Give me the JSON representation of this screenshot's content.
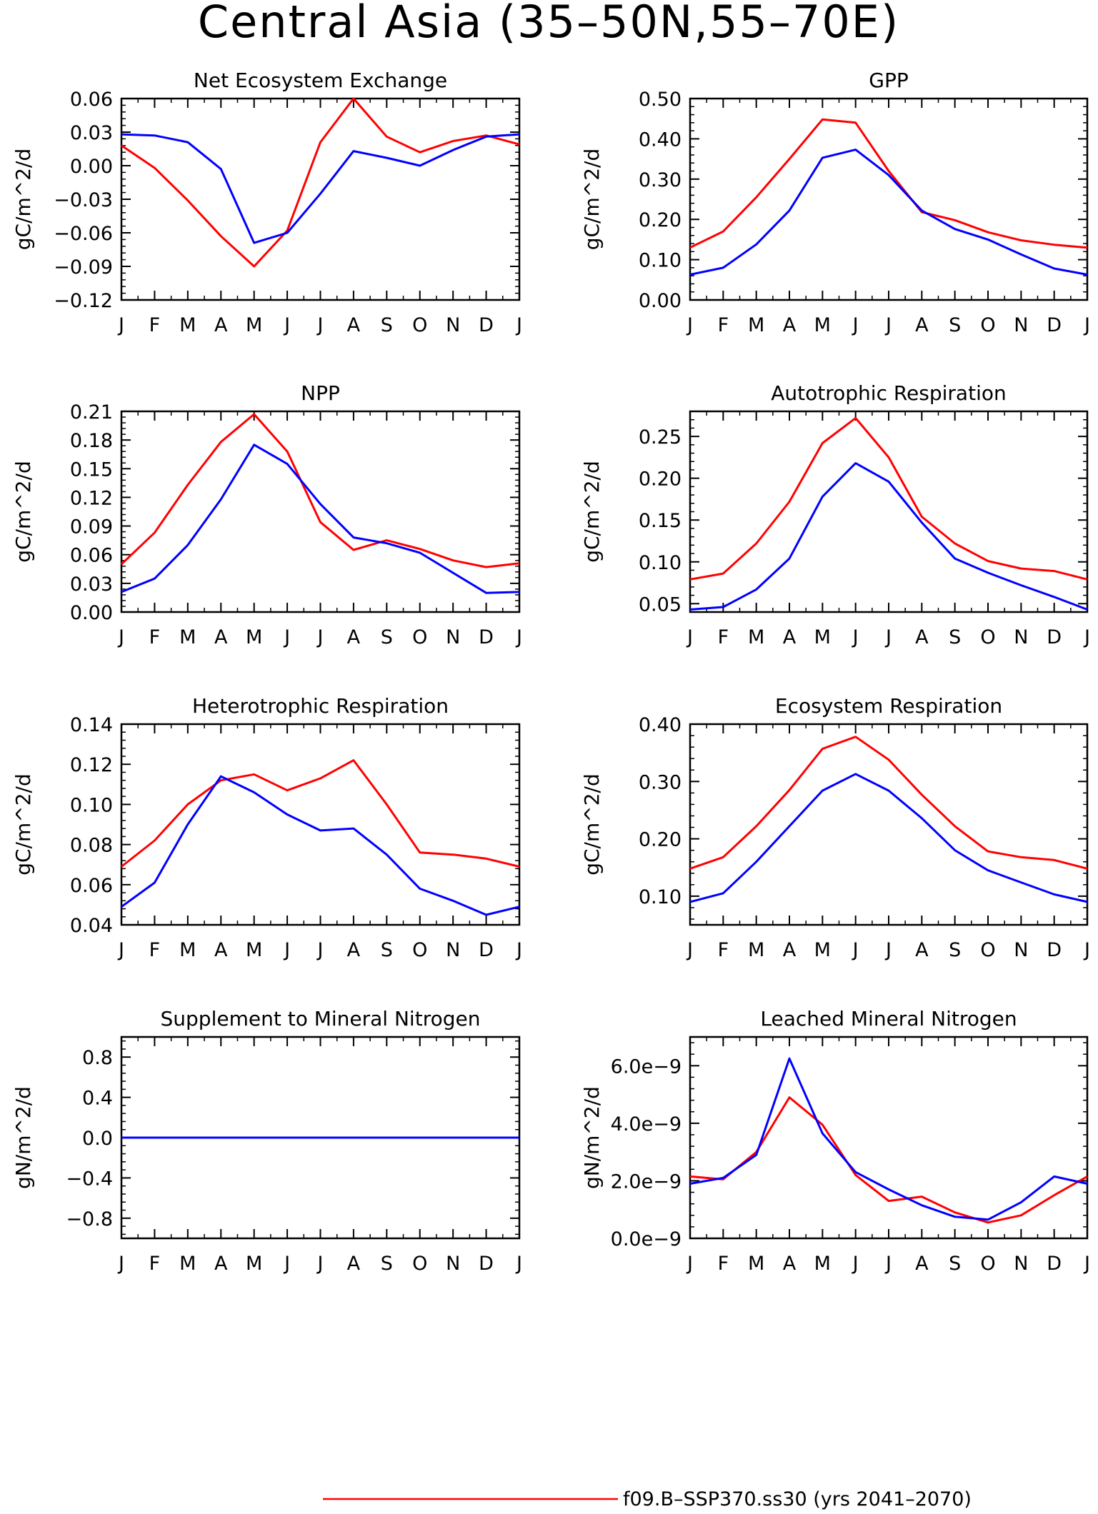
{
  "title": "Central Asia (35–50N,55–70E)",
  "months": [
    "J",
    "F",
    "M",
    "A",
    "M",
    "J",
    "J",
    "A",
    "S",
    "O",
    "N",
    "D",
    "J"
  ],
  "colors": {
    "model_red": "#ff0000",
    "model_blue": "#0000ff",
    "axes": "#000000"
  },
  "legend": {
    "series1_label": "f09.B–SSP370.ss30 (yrs 2041–2070)"
  },
  "chart_data": [
    {
      "type": "line",
      "title": "Net Ecosystem Exchange",
      "ylabel": "gC/m^2/d",
      "ylim": [
        -0.12,
        0.06
      ],
      "yticks": [
        -0.12,
        -0.09,
        -0.06,
        -0.03,
        0.0,
        0.03,
        0.06
      ],
      "ytick_labels": [
        "−0.12",
        "−0.09",
        "−0.06",
        "−0.03",
        "0.00",
        "0.03",
        "0.06"
      ],
      "series": [
        {
          "color": "#ff0000",
          "values": [
            0.018,
            -0.002,
            -0.031,
            -0.063,
            -0.09,
            -0.058,
            0.021,
            0.06,
            0.026,
            0.012,
            0.022,
            0.027,
            0.019
          ]
        },
        {
          "color": "#0000ff",
          "values": [
            0.028,
            0.027,
            0.021,
            -0.003,
            -0.069,
            -0.06,
            -0.025,
            0.013,
            0.007,
            0.0,
            0.014,
            0.026,
            0.028
          ]
        }
      ]
    },
    {
      "type": "line",
      "title": "GPP",
      "ylabel": "gC/m^2/d",
      "ylim": [
        0.0,
        0.5
      ],
      "yticks": [
        0.0,
        0.1,
        0.2,
        0.3,
        0.4,
        0.5
      ],
      "ytick_labels": [
        "0.00",
        "0.10",
        "0.20",
        "0.30",
        "0.40",
        "0.50"
      ],
      "series": [
        {
          "color": "#ff0000",
          "values": [
            0.13,
            0.17,
            0.255,
            0.35,
            0.448,
            0.44,
            0.32,
            0.218,
            0.198,
            0.168,
            0.148,
            0.137,
            0.13
          ]
        },
        {
          "color": "#0000ff",
          "values": [
            0.063,
            0.08,
            0.138,
            0.222,
            0.353,
            0.373,
            0.31,
            0.222,
            0.176,
            0.15,
            0.113,
            0.078,
            0.063
          ]
        }
      ]
    },
    {
      "type": "line",
      "title": "NPP",
      "ylabel": "gC/m^2/d",
      "ylim": [
        0.0,
        0.21
      ],
      "yticks": [
        0.0,
        0.03,
        0.06,
        0.09,
        0.12,
        0.15,
        0.18,
        0.21
      ],
      "ytick_labels": [
        "0.00",
        "0.03",
        "0.06",
        "0.09",
        "0.12",
        "0.15",
        "0.18",
        "0.21"
      ],
      "series": [
        {
          "color": "#ff0000",
          "values": [
            0.05,
            0.083,
            0.133,
            0.178,
            0.207,
            0.168,
            0.094,
            0.065,
            0.075,
            0.066,
            0.054,
            0.047,
            0.051
          ]
        },
        {
          "color": "#0000ff",
          "values": [
            0.021,
            0.035,
            0.07,
            0.118,
            0.175,
            0.155,
            0.113,
            0.078,
            0.072,
            0.062,
            0.041,
            0.02,
            0.021
          ]
        }
      ]
    },
    {
      "type": "line",
      "title": "Autotrophic Respiration",
      "ylabel": "gC/m^2/d",
      "ylim": [
        0.04,
        0.28
      ],
      "yticks": [
        0.05,
        0.1,
        0.15,
        0.2,
        0.25
      ],
      "ytick_labels": [
        "0.05",
        "0.10",
        "0.15",
        "0.20",
        "0.25"
      ],
      "series": [
        {
          "color": "#ff0000",
          "values": [
            0.079,
            0.086,
            0.122,
            0.172,
            0.242,
            0.272,
            0.225,
            0.154,
            0.122,
            0.101,
            0.092,
            0.089,
            0.079
          ]
        },
        {
          "color": "#0000ff",
          "values": [
            0.043,
            0.046,
            0.067,
            0.104,
            0.178,
            0.218,
            0.196,
            0.147,
            0.104,
            0.087,
            0.072,
            0.058,
            0.043
          ]
        }
      ]
    },
    {
      "type": "line",
      "title": "Heterotrophic Respiration",
      "ylabel": "gC/m^2/d",
      "ylim": [
        0.04,
        0.14
      ],
      "yticks": [
        0.04,
        0.06,
        0.08,
        0.1,
        0.12,
        0.14
      ],
      "ytick_labels": [
        "0.04",
        "0.06",
        "0.08",
        "0.10",
        "0.12",
        "0.14"
      ],
      "series": [
        {
          "color": "#ff0000",
          "values": [
            0.069,
            0.082,
            0.1,
            0.112,
            0.115,
            0.107,
            0.113,
            0.122,
            0.1,
            0.076,
            0.075,
            0.073,
            0.069
          ]
        },
        {
          "color": "#0000ff",
          "values": [
            0.049,
            0.061,
            0.09,
            0.114,
            0.106,
            0.095,
            0.087,
            0.088,
            0.075,
            0.058,
            0.052,
            0.045,
            0.049
          ]
        }
      ]
    },
    {
      "type": "line",
      "title": "Ecosystem Respiration",
      "ylabel": "gC/m^2/d",
      "ylim": [
        0.05,
        0.4
      ],
      "yticks": [
        0.1,
        0.2,
        0.3,
        0.4
      ],
      "ytick_labels": [
        "0.10",
        "0.20",
        "0.30",
        "0.40"
      ],
      "series": [
        {
          "color": "#ff0000",
          "values": [
            0.148,
            0.168,
            0.222,
            0.285,
            0.357,
            0.378,
            0.338,
            0.277,
            0.222,
            0.178,
            0.168,
            0.163,
            0.148
          ]
        },
        {
          "color": "#0000ff",
          "values": [
            0.09,
            0.105,
            0.16,
            0.222,
            0.284,
            0.313,
            0.284,
            0.236,
            0.18,
            0.145,
            0.124,
            0.103,
            0.09
          ]
        }
      ]
    },
    {
      "type": "line",
      "title": "Supplement to Mineral Nitrogen",
      "ylabel": "gN/m^2/d",
      "ylim": [
        -1.0,
        1.0
      ],
      "yticks": [
        -0.8,
        -0.4,
        0.0,
        0.4,
        0.8
      ],
      "ytick_labels": [
        "−0.8",
        "−0.4",
        "0.0",
        "0.4",
        "0.8"
      ],
      "series": [
        {
          "color": "#ff0000",
          "values": [
            0,
            0,
            0,
            0,
            0,
            0,
            0,
            0,
            0,
            0,
            0,
            0,
            0
          ]
        },
        {
          "color": "#0000ff",
          "values": [
            0,
            0,
            0,
            0,
            0,
            0,
            0,
            0,
            0,
            0,
            0,
            0,
            0
          ]
        }
      ]
    },
    {
      "type": "line",
      "title": "Leached Mineral Nitrogen",
      "ylabel": "gN/m^2/d",
      "ylim": [
        0.0,
        7e-09
      ],
      "yticks": [
        0.0,
        2e-09,
        4e-09,
        6e-09
      ],
      "ytick_labels": [
        "0.0e−9",
        "2.0e−9",
        "4.0e−9",
        "6.0e−9"
      ],
      "series": [
        {
          "color": "#ff0000",
          "values": [
            2.15e-09,
            2.05e-09,
            3e-09,
            4.9e-09,
            3.95e-09,
            2.2e-09,
            1.3e-09,
            1.45e-09,
            9e-10,
            5.5e-10,
            8e-10,
            1.5e-09,
            2.15e-09
          ]
        },
        {
          "color": "#0000ff",
          "values": [
            1.9e-09,
            2.1e-09,
            2.9e-09,
            6.25e-09,
            3.65e-09,
            2.3e-09,
            1.7e-09,
            1.15e-09,
            7.5e-10,
            6.5e-10,
            1.25e-09,
            2.15e-09,
            1.9e-09
          ]
        }
      ]
    }
  ]
}
